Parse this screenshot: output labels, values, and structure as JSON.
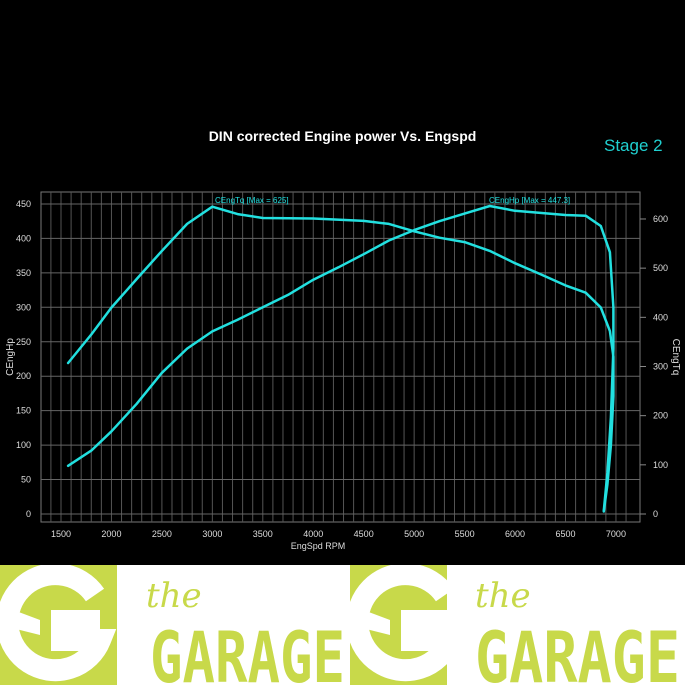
{
  "chart_data": {
    "type": "line",
    "title": "DIN corrected Engine power Vs. Engspd",
    "annotation": "Stage 2",
    "xlabel": "EngSpd RPM",
    "ylabel_left": "CEngHp",
    "ylabel_right": "CEngTq",
    "xlim": [
      1400,
      7120
    ],
    "ylim_left": [
      0,
      470
    ],
    "ylim_right": [
      0,
      650
    ],
    "x_ticks": [
      1500,
      2000,
      2500,
      3000,
      3500,
      4000,
      4500,
      5000,
      5500,
      6000,
      6500,
      7000
    ],
    "y_ticks_left": [
      0,
      50,
      100,
      150,
      200,
      250,
      300,
      350,
      400,
      450
    ],
    "y_ticks_right": [
      0,
      100,
      200,
      300,
      400,
      500,
      600
    ],
    "grid": true,
    "line_color": "#22e0e0",
    "series": [
      {
        "name": "CEngHp",
        "label": "CEngHp [Max = 447.3]",
        "axis": "left",
        "points": [
          [
            1570,
            70
          ],
          [
            1800,
            92
          ],
          [
            2000,
            120
          ],
          [
            2250,
            160
          ],
          [
            2500,
            205
          ],
          [
            2750,
            240
          ],
          [
            3000,
            265
          ],
          [
            3250,
            282
          ],
          [
            3500,
            300
          ],
          [
            3750,
            318
          ],
          [
            4000,
            340
          ],
          [
            4250,
            358
          ],
          [
            4500,
            377
          ],
          [
            4750,
            397
          ],
          [
            5000,
            412
          ],
          [
            5250,
            425
          ],
          [
            5500,
            436
          ],
          [
            5750,
            447
          ],
          [
            6000,
            440
          ],
          [
            6250,
            437
          ],
          [
            6500,
            434
          ],
          [
            6700,
            433
          ],
          [
            6850,
            418
          ],
          [
            6940,
            380
          ],
          [
            6975,
            300
          ],
          [
            6975,
            240
          ],
          [
            6950,
            140
          ],
          [
            6915,
            60
          ],
          [
            6880,
            5
          ]
        ]
      },
      {
        "name": "CEngTq",
        "label": "CEngTq [Max = 625]",
        "axis": "right",
        "points": [
          [
            1570,
            307
          ],
          [
            1800,
            365
          ],
          [
            2000,
            420
          ],
          [
            2250,
            478
          ],
          [
            2500,
            535
          ],
          [
            2750,
            590
          ],
          [
            3000,
            625
          ],
          [
            3250,
            610
          ],
          [
            3500,
            602
          ],
          [
            4000,
            601
          ],
          [
            4500,
            596
          ],
          [
            4750,
            590
          ],
          [
            5000,
            575
          ],
          [
            5250,
            562
          ],
          [
            5500,
            553
          ],
          [
            5750,
            535
          ],
          [
            6000,
            510
          ],
          [
            6250,
            488
          ],
          [
            6500,
            465
          ],
          [
            6700,
            450
          ],
          [
            6850,
            420
          ],
          [
            6940,
            372
          ],
          [
            6975,
            320
          ],
          [
            6975,
            240
          ],
          [
            6950,
            140
          ],
          [
            6915,
            60
          ],
          [
            6880,
            5
          ]
        ]
      }
    ]
  },
  "logo": {
    "text_small": "the",
    "text_large": "GARAGE",
    "color": "#c8d94a"
  }
}
